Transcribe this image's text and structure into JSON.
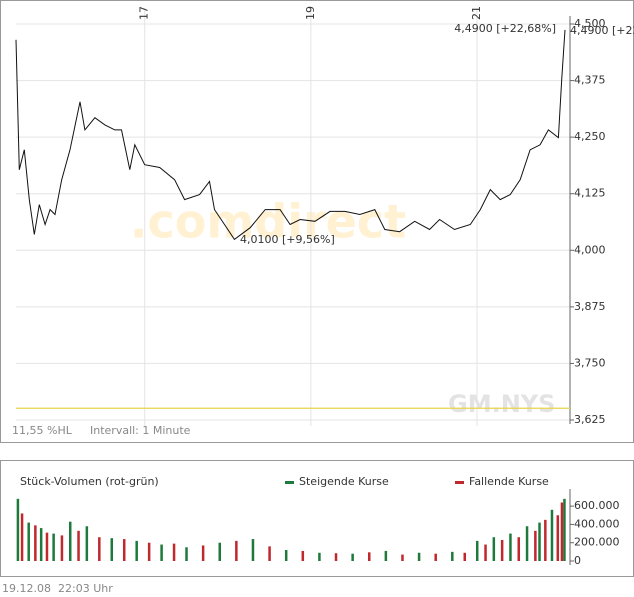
{
  "chart_data": [
    {
      "type": "line",
      "watermark": ".comdirect",
      "symbol": "GM.NYS",
      "hl_range": "11,55 %HL",
      "interval": "Intervall: 1 Minute",
      "annotations": [
        "4,4900 [+22,68%]",
        "4,0100 [+9,56%]"
      ],
      "xlim": [
        15.45,
        22.12
      ],
      "xticks": [
        17,
        19,
        21
      ],
      "ylim": [
        3.625,
        4.5
      ],
      "yticks": [
        {
          "value": 3.625,
          "label": "3,625"
        },
        {
          "value": 3.75,
          "label": "3,750"
        },
        {
          "value": 3.875,
          "label": "3,875"
        },
        {
          "value": 4.0,
          "label": "4,000"
        },
        {
          "value": 4.125,
          "label": "4,125"
        },
        {
          "value": 4.25,
          "label": "4,250"
        },
        {
          "value": 4.375,
          "label": "4,375"
        },
        {
          "value": 4.5,
          "label": "4,500"
        }
      ],
      "grid": true,
      "reference_line": {
        "value": 3.651,
        "color": "#e8d44a"
      },
      "series": [
        {
          "color": "#111111",
          "x": [
            15.45,
            15.49,
            15.55,
            15.61,
            15.67,
            15.73,
            15.8,
            15.86,
            15.92,
            16.0,
            16.1,
            16.22,
            16.28,
            16.4,
            16.52,
            16.64,
            16.72,
            16.82,
            16.88,
            17.0,
            17.18,
            17.36,
            17.48,
            17.66,
            17.78,
            17.84,
            17.96,
            18.08,
            18.27,
            18.45,
            18.63,
            18.75,
            18.87,
            19.05,
            19.23,
            19.41,
            19.59,
            19.77,
            19.89,
            20.07,
            20.25,
            20.43,
            20.55,
            20.73,
            20.92,
            21.04,
            21.16,
            21.28,
            21.4,
            21.52,
            21.64,
            21.76,
            21.86,
            21.98,
            22.02,
            22.06
          ],
          "values": [
            4.465,
            4.178,
            4.222,
            4.112,
            4.035,
            4.101,
            4.057,
            4.09,
            4.079,
            4.156,
            4.222,
            4.328,
            4.266,
            4.293,
            4.277,
            4.266,
            4.266,
            4.178,
            4.233,
            4.189,
            4.183,
            4.156,
            4.112,
            4.123,
            4.152,
            4.09,
            4.057,
            4.024,
            4.05,
            4.09,
            4.09,
            4.057,
            4.068,
            4.064,
            4.086,
            4.086,
            4.079,
            4.09,
            4.046,
            4.041,
            4.064,
            4.046,
            4.068,
            4.046,
            4.057,
            4.09,
            4.134,
            4.112,
            4.123,
            4.156,
            4.222,
            4.233,
            4.266,
            4.249,
            4.377,
            4.487
          ]
        }
      ]
    },
    {
      "type": "bar",
      "title": "Stück-Volumen (rot-grün)",
      "xlim": [
        15.45,
        22.12
      ],
      "ylim": [
        0,
        700000
      ],
      "yticks": [
        0,
        {
          "value": 200000,
          "label": "200.000"
        },
        {
          "value": 400000,
          "label": "400.000"
        },
        {
          "value": 600000,
          "label": "600.000"
        }
      ],
      "series": [
        {
          "name": "Steigende Kurse",
          "color": "#1e7a3c",
          "x": [
            15.47,
            15.6,
            15.75,
            15.9,
            16.1,
            16.3,
            16.6,
            16.9,
            17.2,
            17.5,
            17.9,
            18.3,
            18.7,
            19.1,
            19.5,
            19.9,
            20.3,
            20.7,
            21.0,
            21.2,
            21.4,
            21.6,
            21.75,
            21.9,
            22.05
          ],
          "values": [
            680000,
            420000,
            360000,
            300000,
            430000,
            380000,
            250000,
            220000,
            180000,
            150000,
            200000,
            240000,
            120000,
            90000,
            80000,
            110000,
            90000,
            100000,
            220000,
            260000,
            300000,
            380000,
            420000,
            560000,
            680000
          ]
        },
        {
          "name": "Fallende Kurse",
          "color": "#c0282d",
          "x": [
            15.52,
            15.68,
            15.82,
            16.0,
            16.2,
            16.45,
            16.75,
            17.05,
            17.35,
            17.7,
            18.1,
            18.5,
            18.9,
            19.3,
            19.7,
            20.1,
            20.5,
            20.85,
            21.1,
            21.3,
            21.5,
            21.7,
            21.82,
            21.97,
            22.02
          ],
          "values": [
            520000,
            390000,
            310000,
            280000,
            330000,
            260000,
            240000,
            200000,
            190000,
            170000,
            220000,
            160000,
            110000,
            85000,
            95000,
            70000,
            80000,
            90000,
            180000,
            230000,
            260000,
            330000,
            450000,
            500000,
            640000
          ]
        }
      ]
    }
  ],
  "footer": {
    "date": "19.12.08",
    "time": "22:03 Uhr"
  }
}
